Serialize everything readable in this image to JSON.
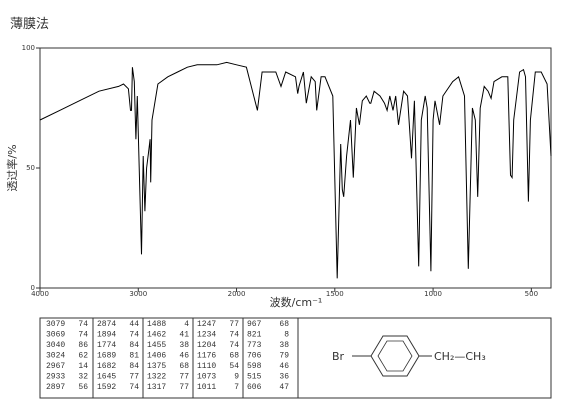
{
  "chart_data": {
    "type": "line",
    "title": "薄膜法",
    "xlabel": "波数/cm⁻¹",
    "ylabel": "透过率/%",
    "xlim": [
      4000,
      400
    ],
    "x_scale_break": 2000,
    "ylim": [
      0,
      100
    ],
    "xticks": [
      4000,
      3000,
      2000,
      1500,
      1000,
      500
    ],
    "yticks": [
      0,
      50,
      100
    ],
    "color": "#000000",
    "x": [
      4000,
      3800,
      3600,
      3400,
      3200,
      3150,
      3100,
      3079,
      3069,
      3060,
      3040,
      3024,
      3010,
      2967,
      2950,
      2933,
      2915,
      2897,
      2880,
      2874,
      2860,
      2800,
      2700,
      2600,
      2500,
      2400,
      2300,
      2200,
      2100,
      2000,
      1950,
      1894,
      1870,
      1800,
      1774,
      1750,
      1700,
      1689,
      1682,
      1660,
      1645,
      1620,
      1600,
      1592,
      1570,
      1550,
      1510,
      1488,
      1470,
      1462,
      1455,
      1440,
      1420,
      1406,
      1390,
      1375,
      1360,
      1340,
      1322,
      1317,
      1300,
      1270,
      1247,
      1234,
      1220,
      1204,
      1190,
      1176,
      1150,
      1130,
      1110,
      1095,
      1073,
      1060,
      1040,
      1030,
      1011,
      1000,
      990,
      967,
      950,
      900,
      870,
      840,
      821,
      800,
      785,
      773,
      760,
      740,
      720,
      705,
      690,
      650,
      620,
      606,
      598,
      590,
      560,
      540,
      530,
      515,
      505,
      480,
      450,
      420,
      400
    ],
    "values": [
      70,
      74,
      78,
      82,
      84,
      85,
      83,
      74,
      74,
      92,
      86,
      62,
      80,
      14,
      55,
      32,
      50,
      56,
      62,
      44,
      70,
      85,
      88,
      90,
      92,
      93,
      93,
      93,
      94,
      93,
      92,
      74,
      90,
      90,
      84,
      90,
      88,
      81,
      84,
      90,
      77,
      88,
      86,
      74,
      88,
      88,
      80,
      4,
      60,
      41,
      38,
      55,
      70,
      46,
      75,
      68,
      78,
      80,
      77,
      77,
      82,
      80,
      77,
      74,
      80,
      74,
      80,
      68,
      82,
      80,
      54,
      78,
      9,
      70,
      80,
      75,
      7,
      70,
      78,
      68,
      80,
      86,
      88,
      80,
      8,
      75,
      70,
      38,
      75,
      84,
      82,
      79,
      86,
      88,
      88,
      47,
      46,
      70,
      90,
      91,
      88,
      36,
      70,
      90,
      90,
      85,
      55
    ]
  },
  "peak_table": {
    "columns": [
      [
        [
          3079,
          74
        ],
        [
          3069,
          74
        ],
        [
          3040,
          86
        ],
        [
          3024,
          62
        ],
        [
          2967,
          14
        ],
        [
          2933,
          32
        ],
        [
          2897,
          56
        ]
      ],
      [
        [
          2874,
          44
        ],
        [
          1894,
          74
        ],
        [
          1774,
          84
        ],
        [
          1689,
          81
        ],
        [
          1682,
          84
        ],
        [
          1645,
          77
        ],
        [
          1592,
          74
        ]
      ],
      [
        [
          1488,
          4
        ],
        [
          1462,
          41
        ],
        [
          1455,
          38
        ],
        [
          1406,
          46
        ],
        [
          1375,
          68
        ],
        [
          1322,
          77
        ],
        [
          1317,
          77
        ]
      ],
      [
        [
          1247,
          77
        ],
        [
          1234,
          74
        ],
        [
          1204,
          74
        ],
        [
          1176,
          68
        ],
        [
          1110,
          54
        ],
        [
          1073,
          9
        ],
        [
          1011,
          7
        ]
      ],
      [
        [
          967,
          68
        ],
        [
          821,
          8
        ],
        [
          773,
          38
        ],
        [
          706,
          79
        ],
        [
          598,
          46
        ],
        [
          515,
          36
        ],
        [
          606,
          47
        ]
      ]
    ]
  },
  "structure": {
    "left": "Br",
    "right": "CH₂—CH₃"
  }
}
